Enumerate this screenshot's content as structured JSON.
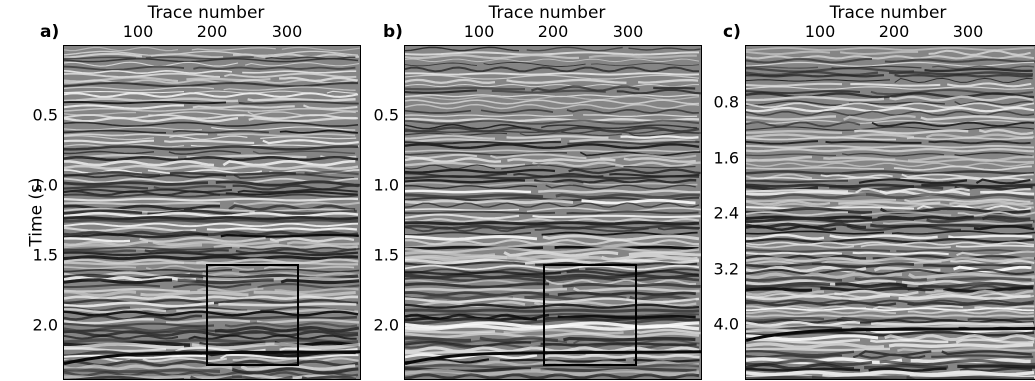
{
  "y_axis_label": "Time (s)",
  "panels": [
    {
      "letter": "a)",
      "xlabel": "Trace number",
      "xticks": [
        "100",
        "200",
        "300"
      ],
      "yticks": [
        "0.5",
        "1.0",
        "1.5",
        "2.0"
      ],
      "has_box": true,
      "seed": 11
    },
    {
      "letter": "b)",
      "xlabel": "Trace number",
      "xticks": [
        "100",
        "200",
        "300"
      ],
      "yticks": [
        "0.5",
        "1.0",
        "1.5",
        "2.0"
      ],
      "has_box": true,
      "seed": 23
    },
    {
      "letter": "c)",
      "xlabel": "Trace number",
      "xticks": [
        "100",
        "200",
        "300"
      ],
      "yticks": [
        "0.8",
        "1.6",
        "2.4",
        "3.2",
        "4.0"
      ],
      "has_box": false,
      "seed": 37
    }
  ]
}
